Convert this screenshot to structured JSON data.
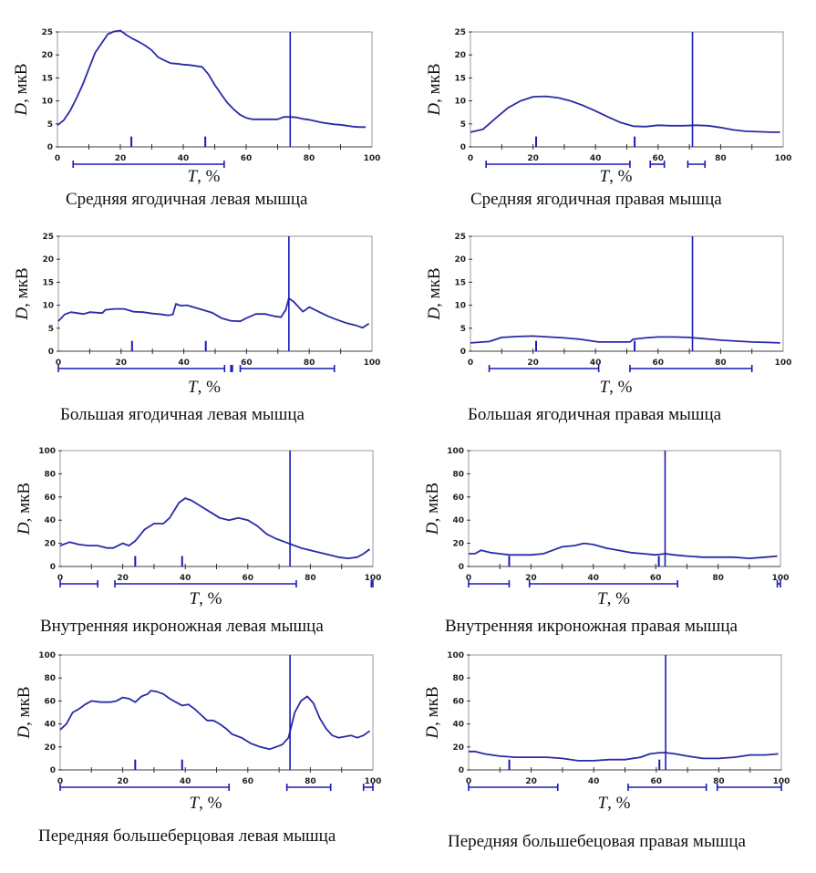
{
  "colors": {
    "curve": "#2a2aa8",
    "marker": "#1a1ab4",
    "frame": "#999999"
  },
  "common": {
    "ylabel_var": "D",
    "ylabel_unit": ", мкВ",
    "xlabel_var": "T",
    "xlabel_unit": ", %"
  },
  "chart_data": [
    {
      "type": "line",
      "title": "Средняя ягодичная левая мышца",
      "xlabel": "T, %",
      "ylabel": "D, мкВ",
      "xlim": [
        0,
        100
      ],
      "ylim": [
        0,
        25
      ],
      "xticks": [
        0,
        20,
        40,
        60,
        80,
        100
      ],
      "yticks": [
        0,
        5,
        10,
        15,
        20,
        25
      ],
      "x": [
        0,
        2,
        4,
        6,
        8,
        10,
        12,
        14,
        16,
        18,
        20,
        22,
        24,
        26,
        28,
        30,
        32,
        34,
        36,
        38,
        40,
        42,
        44,
        46,
        48,
        50,
        52,
        54,
        56,
        58,
        60,
        62,
        64,
        66,
        68,
        70,
        72,
        74,
        76,
        78,
        80,
        82,
        84,
        86,
        88,
        90,
        92,
        94,
        96,
        98
      ],
      "y": [
        4.7,
        5.8,
        7.8,
        10.5,
        13.5,
        17.0,
        20.5,
        22.5,
        24.5,
        25.1,
        25.3,
        24.3,
        23.5,
        22.8,
        22.0,
        21.0,
        19.5,
        18.8,
        18.2,
        18.1,
        17.9,
        17.8,
        17.6,
        17.4,
        15.8,
        13.5,
        11.5,
        9.6,
        8.2,
        7.0,
        6.3,
        6.0,
        6.0,
        6.0,
        6.0,
        6.0,
        6.5,
        6.5,
        6.4,
        6.1,
        5.9,
        5.6,
        5.3,
        5.1,
        4.9,
        4.8,
        4.6,
        4.4,
        4.3,
        4.3
      ],
      "vline_x": 74,
      "short_marks_x": [
        23.5,
        47
      ],
      "phase_bars": [
        [
          5,
          53
        ]
      ]
    },
    {
      "type": "line",
      "title": "Средняя ягодичная правая мышца",
      "xlabel": "T, %",
      "ylabel": "D, мкВ",
      "xlim": [
        0,
        100
      ],
      "ylim": [
        0,
        25
      ],
      "xticks": [
        0,
        20,
        40,
        60,
        80,
        100
      ],
      "yticks": [
        0,
        5,
        10,
        15,
        20,
        25
      ],
      "x": [
        0,
        4,
        8,
        12,
        16,
        20,
        24,
        28,
        32,
        36,
        40,
        44,
        48,
        52,
        56,
        60,
        64,
        68,
        72,
        76,
        80,
        84,
        88,
        92,
        96,
        99
      ],
      "y": [
        3.2,
        3.8,
        6.2,
        8.5,
        10.0,
        10.9,
        11.0,
        10.7,
        10.0,
        9.0,
        7.8,
        6.5,
        5.3,
        4.5,
        4.4,
        4.7,
        4.6,
        4.6,
        4.7,
        4.6,
        4.2,
        3.7,
        3.4,
        3.3,
        3.2,
        3.2
      ],
      "vline_x": 71,
      "short_marks_x": [
        21,
        52.5
      ],
      "phase_bars": [
        [
          5,
          51
        ],
        [
          57.5,
          62
        ],
        [
          69.5,
          75
        ]
      ]
    },
    {
      "type": "line",
      "title": "Большая ягодичная левая мышца",
      "xlabel": "T, %",
      "ylabel": "D, мкВ",
      "xlim": [
        0,
        100
      ],
      "ylim": [
        0,
        25
      ],
      "xticks": [
        0,
        20,
        40,
        60,
        80,
        100
      ],
      "yticks": [
        0,
        5,
        10,
        15,
        20,
        25
      ],
      "x": [
        0,
        2,
        4,
        6,
        8,
        10,
        12,
        14,
        15,
        18,
        21,
        24,
        27,
        30,
        33,
        35,
        36.5,
        37.5,
        39,
        41,
        43,
        46,
        49,
        52,
        55,
        58,
        60,
        63,
        66,
        69,
        71,
        72.5,
        73.5,
        75,
        78,
        80,
        83,
        86,
        89,
        92,
        95,
        97,
        99
      ],
      "y": [
        6.5,
        8.0,
        8.5,
        8.3,
        8.1,
        8.5,
        8.4,
        8.3,
        9.0,
        9.2,
        9.2,
        8.6,
        8.5,
        8.2,
        8.0,
        7.8,
        8.0,
        10.3,
        9.9,
        10.0,
        9.6,
        9.0,
        8.4,
        7.2,
        6.6,
        6.5,
        7.2,
        8.1,
        8.1,
        7.6,
        7.4,
        9.0,
        11.5,
        10.8,
        8.6,
        9.6,
        8.6,
        7.6,
        6.8,
        6.1,
        5.6,
        5.1,
        6.0
      ],
      "vline_x": 73.5,
      "short_marks_x": [
        23.5,
        47
      ],
      "phase_bars": [
        [
          0,
          53
        ],
        [
          55,
          55.5
        ],
        [
          58,
          88
        ]
      ]
    },
    {
      "type": "line",
      "title": "Большая ягодичная правая мышца",
      "xlabel": "T, %",
      "ylabel": "D, мкВ",
      "xlim": [
        0,
        100
      ],
      "ylim": [
        0,
        25
      ],
      "xticks": [
        0,
        20,
        40,
        60,
        80,
        100
      ],
      "yticks": [
        0,
        5,
        10,
        15,
        20,
        25
      ],
      "x": [
        0,
        6,
        10,
        15,
        20,
        25,
        30,
        35,
        41,
        46,
        51,
        52,
        56,
        60,
        65,
        70,
        75,
        80,
        85,
        90,
        95,
        99
      ],
      "y": [
        1.8,
        2.1,
        3.0,
        3.2,
        3.3,
        3.1,
        2.9,
        2.6,
        2.0,
        2.0,
        2.0,
        2.6,
        2.9,
        3.1,
        3.1,
        3.0,
        2.7,
        2.4,
        2.2,
        2.0,
        1.9,
        1.8
      ],
      "vline_x": 71,
      "short_marks_x": [
        21,
        52.5
      ],
      "phase_bars": [
        [
          6,
          41
        ],
        [
          51,
          90
        ]
      ]
    },
    {
      "type": "line",
      "title": "Внутренняя икроножная левая мышца",
      "xlabel": "T, %",
      "ylabel": "D, мкВ",
      "xlim": [
        0,
        100
      ],
      "ylim": [
        0,
        100
      ],
      "xticks": [
        0,
        20,
        40,
        60,
        80,
        100
      ],
      "yticks": [
        0,
        20,
        40,
        60,
        80,
        100
      ],
      "x": [
        0,
        3,
        6,
        9,
        12,
        15,
        17,
        20,
        22,
        24,
        27,
        30,
        33,
        35,
        38,
        40,
        42,
        45,
        48,
        51,
        54,
        57,
        60,
        63,
        66,
        69,
        72,
        74,
        77,
        80,
        83,
        86,
        89,
        92,
        95,
        97,
        99
      ],
      "y": [
        18,
        21,
        19,
        18,
        18,
        16,
        16,
        20,
        18,
        22,
        32,
        37,
        37,
        42,
        55,
        59,
        57,
        52,
        47,
        42,
        40,
        42,
        40,
        35,
        28,
        24,
        21,
        19,
        16,
        14,
        12,
        10,
        8,
        7,
        8,
        11,
        15
      ],
      "vline_x": 73.5,
      "short_marks_x": [
        24,
        39
      ],
      "phase_bars": [
        [
          0,
          12
        ],
        [
          17.5,
          75.5
        ],
        [
          99.5,
          100
        ]
      ]
    },
    {
      "type": "line",
      "title": "Внутренняя икроножная правая мышца",
      "xlabel": "T, %",
      "ylabel": "D, мкВ",
      "xlim": [
        0,
        100
      ],
      "ylim": [
        0,
        100
      ],
      "xticks": [
        0,
        20,
        40,
        60,
        80,
        100
      ],
      "yticks": [
        0,
        20,
        40,
        60,
        80,
        100
      ],
      "x": [
        0,
        2,
        4,
        7,
        10,
        13,
        16,
        20,
        24,
        27,
        30,
        34,
        37,
        40,
        44,
        48,
        52,
        56,
        60,
        63,
        66,
        70,
        75,
        80,
        85,
        90,
        95,
        99
      ],
      "y": [
        11,
        11,
        14,
        12,
        11,
        10,
        10,
        10,
        11,
        14,
        17,
        18,
        20,
        19,
        16,
        14,
        12,
        11,
        10,
        11,
        10,
        9,
        8,
        8,
        8,
        7,
        8,
        9
      ],
      "vline_x": 63,
      "short_marks_x": [
        13,
        61
      ],
      "phase_bars": [
        [
          0,
          13
        ],
        [
          19.5,
          67
        ],
        [
          99,
          100
        ]
      ]
    },
    {
      "type": "line",
      "title": "Передняя большеберцовая левая мышца",
      "xlabel": "T, %",
      "ylabel": "D, мкВ",
      "xlim": [
        0,
        100
      ],
      "ylim": [
        0,
        100
      ],
      "xticks": [
        0,
        20,
        40,
        60,
        80,
        100
      ],
      "yticks": [
        0,
        20,
        40,
        60,
        80,
        100
      ],
      "x": [
        0,
        2,
        4,
        6,
        8,
        10,
        13,
        16,
        18,
        20,
        22,
        24,
        26,
        28,
        29,
        31,
        33,
        35,
        37,
        39,
        41,
        43,
        45,
        47,
        49,
        51,
        53,
        55,
        58,
        61,
        64,
        67,
        69,
        71,
        73,
        75,
        77,
        79,
        81,
        83,
        85,
        87,
        89,
        91,
        93,
        95,
        97,
        99
      ],
      "y": [
        35,
        40,
        50,
        53,
        57,
        60,
        59,
        59,
        60,
        63,
        62,
        59,
        64,
        66,
        69,
        68,
        66,
        62,
        59,
        56,
        57,
        53,
        48,
        43,
        43,
        40,
        36,
        31,
        28,
        23,
        20,
        18,
        20,
        22,
        28,
        50,
        60,
        64,
        58,
        45,
        36,
        30,
        28,
        29,
        30,
        28,
        30,
        34
      ],
      "vline_x": 73.5,
      "short_marks_x": [
        24,
        39
      ],
      "phase_bars": [
        [
          0,
          54
        ],
        [
          72.5,
          86.5
        ],
        [
          97,
          100
        ]
      ]
    },
    {
      "type": "line",
      "title": "Передняя большебецовая правая мышца",
      "xlabel": "T, %",
      "ylabel": "D, мкВ",
      "xlim": [
        0,
        100
      ],
      "ylim": [
        0,
        100
      ],
      "xticks": [
        0,
        20,
        40,
        60,
        80,
        100
      ],
      "yticks": [
        0,
        20,
        40,
        60,
        80,
        100
      ],
      "x": [
        0,
        2,
        5,
        10,
        15,
        20,
        25,
        30,
        35,
        40,
        45,
        50,
        55,
        58,
        61,
        63,
        66,
        70,
        75,
        80,
        85,
        90,
        95,
        99
      ],
      "y": [
        16,
        16,
        14,
        12,
        11,
        11,
        11,
        10,
        8,
        8,
        9,
        9,
        11,
        14,
        15,
        15,
        14,
        12,
        10,
        10,
        11,
        13,
        13,
        14
      ],
      "vline_x": 63,
      "short_marks_x": [
        13,
        61
      ],
      "phase_bars": [
        [
          0,
          28.5
        ],
        [
          51,
          76
        ],
        [
          79.5,
          100
        ]
      ]
    }
  ]
}
